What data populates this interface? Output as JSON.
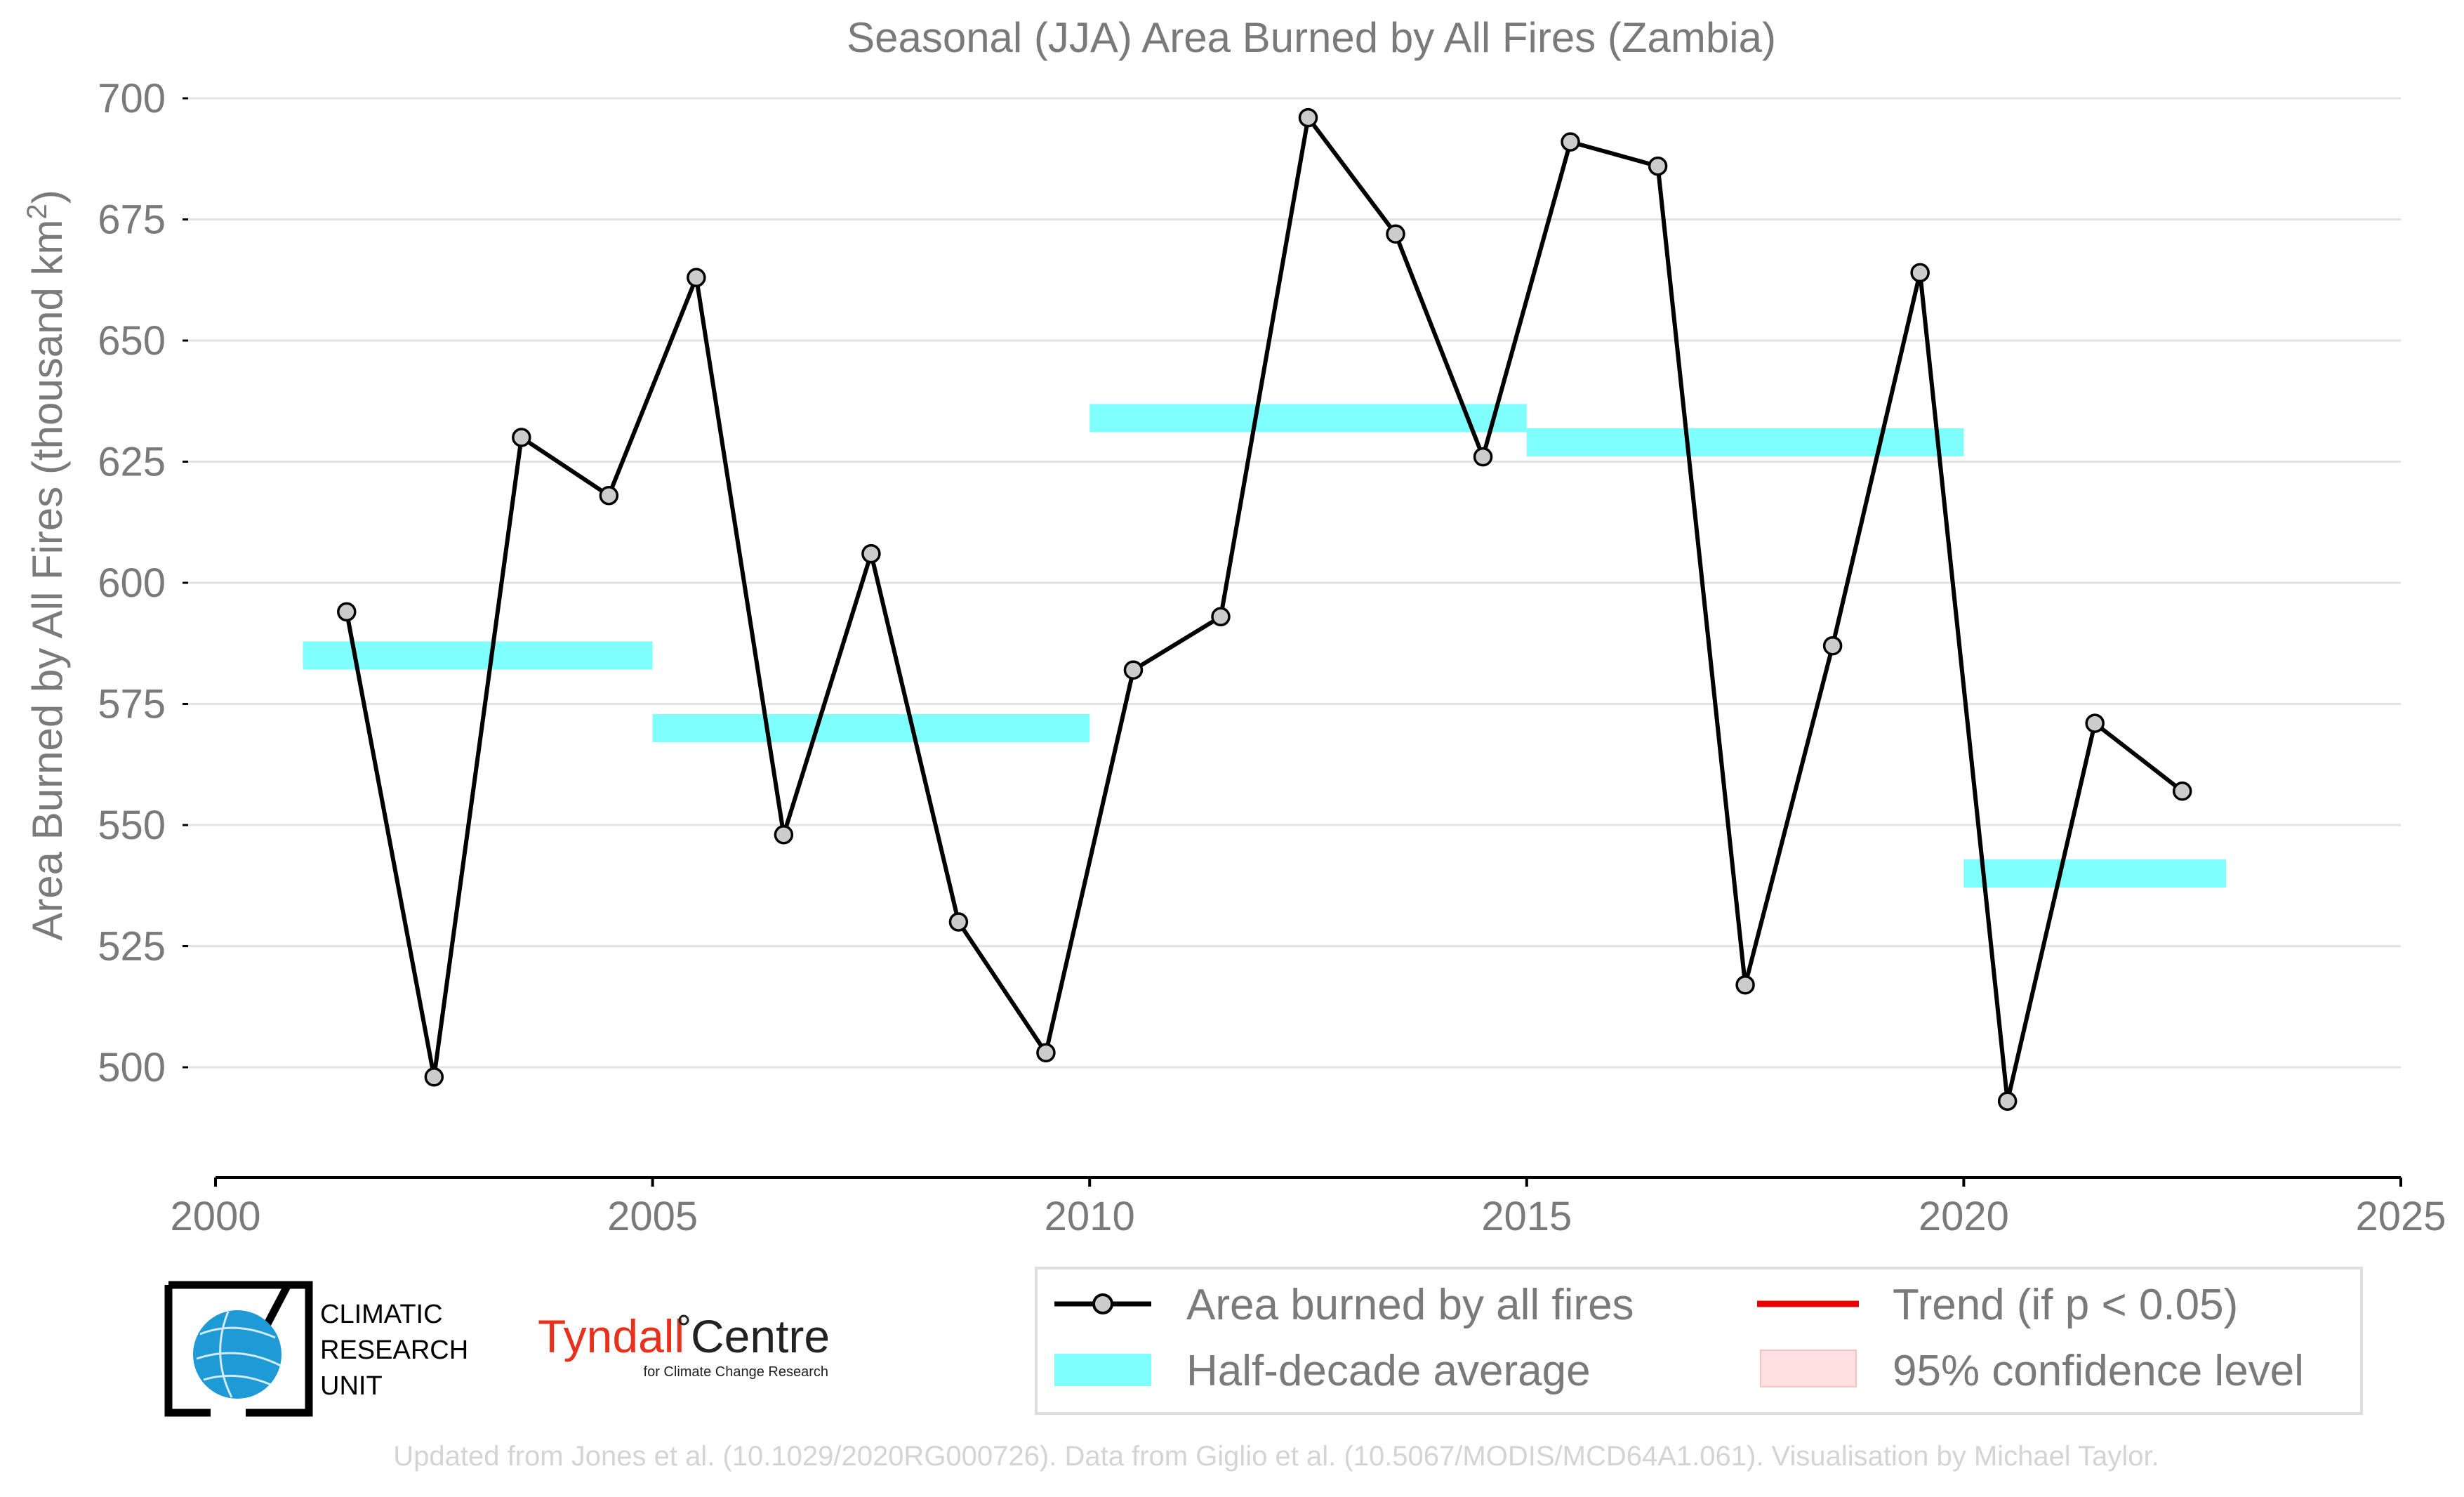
{
  "chart_data": {
    "type": "line",
    "title": "Seasonal (JJA) Area Burned by All Fires (Zambia)",
    "xlabel": "",
    "ylabel": "Area Burned by All Fires (thousand km",
    "ylabel_sup": "2",
    "ylabel_close": ")",
    "xlim": [
      2000,
      2025
    ],
    "ylim": [
      477,
      720
    ],
    "x_ticks": [
      "2000",
      "2005",
      "2010",
      "2015",
      "2020",
      "2025"
    ],
    "y_ticks": [
      "500",
      "525",
      "550",
      "575",
      "600",
      "625",
      "650",
      "675",
      "700"
    ],
    "grid": "horizontal",
    "series": [
      {
        "name": "Area burned by all fires",
        "color": "#000000",
        "marker_color": "#cccccc",
        "x": [
          2001.5,
          2002.5,
          2003.5,
          2004.5,
          2005.5,
          2006.5,
          2007.5,
          2008.5,
          2009.5,
          2010.5,
          2011.5,
          2012.5,
          2013.5,
          2014.5,
          2015.5,
          2016.5,
          2017.5,
          2018.5,
          2019.5,
          2020.5,
          2021.5,
          2022.5
        ],
        "y": [
          594,
          498,
          630,
          618,
          663,
          548,
          606,
          530,
          503,
          582,
          593,
          696,
          672,
          626,
          691,
          686,
          517,
          587,
          664,
          493,
          571,
          557
        ]
      },
      {
        "name": "Half-decade average",
        "color": "#80ffff",
        "segments": [
          {
            "x_start": 2001,
            "x_end": 2005,
            "y": 585
          },
          {
            "x_start": 2005,
            "x_end": 2010,
            "y": 570
          },
          {
            "x_start": 2010,
            "x_end": 2015,
            "y": 634
          },
          {
            "x_start": 2015,
            "x_end": 2020,
            "y": 629
          },
          {
            "x_start": 2020,
            "x_end": 2023,
            "y": 540
          }
        ]
      }
    ]
  },
  "legend": {
    "placement": "bottom-right",
    "entries": [
      {
        "label": "Area burned by all fires",
        "kind": "line-marker",
        "color": "#000000"
      },
      {
        "label": "Trend (if p < 0.05)",
        "kind": "line",
        "color": "#ee0000"
      },
      {
        "label": "Half-decade average",
        "kind": "band",
        "color": "#80ffff"
      },
      {
        "label": "95% confidence level",
        "kind": "patch",
        "color": "#ffe0e0"
      }
    ]
  },
  "logos": {
    "cru": [
      "CLIMATIC",
      "RESEARCH",
      "UNIT"
    ],
    "tyndall_main": "Tyndall",
    "tyndall_centre": "Centre",
    "tyndall_sub": "for Climate Change Research"
  },
  "footer": "Updated from Jones et al. (10.1029/2020RG000726). Data from Giglio et al. (10.5067/MODIS/MCD64A1.061). Visualisation by Michael Taylor."
}
